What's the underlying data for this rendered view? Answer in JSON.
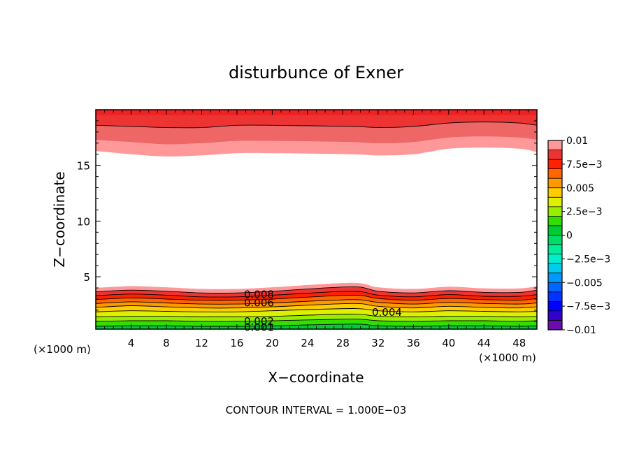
{
  "chart_data": {
    "type": "contour",
    "title": "disturbunce of Exner",
    "xlabel": "X−coordinate",
    "ylabel": "Z−coordinate",
    "x_unit_left": "(×1000 m)",
    "x_unit_right": "(×1000 m)",
    "xlim": [
      0,
      50
    ],
    "ylim": [
      0.3,
      20
    ],
    "x_ticks": [
      4,
      8,
      12,
      16,
      20,
      24,
      28,
      32,
      36,
      40,
      44,
      48
    ],
    "y_ticks": [
      5,
      10,
      15
    ],
    "footer": "CONTOUR INTERVAL = 1.000E−03",
    "contour_interval": 0.001,
    "colorbar": {
      "range": [
        -0.01,
        0.01
      ],
      "tick_labels": [
        "0.01",
        "7.5e−3",
        "0.005",
        "2.5e−3",
        "0",
        "−2.5e−3",
        "−0.005",
        "−7.5e−3",
        "−0.01"
      ],
      "tick_values": [
        0.01,
        0.0075,
        0.005,
        0.0025,
        0,
        -0.0025,
        -0.005,
        -0.0075,
        -0.01
      ],
      "levels": [
        {
          "from": -0.01,
          "to": -0.009,
          "color": "#6a0dad"
        },
        {
          "from": -0.009,
          "to": -0.008,
          "color": "#3300cc"
        },
        {
          "from": -0.008,
          "to": -0.007,
          "color": "#0000ff"
        },
        {
          "from": -0.007,
          "to": -0.006,
          "color": "#0033ff"
        },
        {
          "from": -0.006,
          "to": -0.005,
          "color": "#0066ff"
        },
        {
          "from": -0.005,
          "to": -0.004,
          "color": "#0099ff"
        },
        {
          "from": -0.004,
          "to": -0.003,
          "color": "#00ccee"
        },
        {
          "from": -0.003,
          "to": -0.002,
          "color": "#00eecc"
        },
        {
          "from": -0.002,
          "to": -0.001,
          "color": "#00ee99"
        },
        {
          "from": -0.001,
          "to": 0.0,
          "color": "#00dd66"
        },
        {
          "from": 0.0,
          "to": 0.001,
          "color": "#00cc33"
        },
        {
          "from": 0.001,
          "to": 0.002,
          "color": "#33dd00"
        },
        {
          "from": 0.002,
          "to": 0.003,
          "color": "#99ee00"
        },
        {
          "from": 0.003,
          "to": 0.004,
          "color": "#ddf000"
        },
        {
          "from": 0.004,
          "to": 0.005,
          "color": "#ffcc00"
        },
        {
          "from": 0.005,
          "to": 0.006,
          "color": "#ff9900"
        },
        {
          "from": 0.006,
          "to": 0.007,
          "color": "#ff6600"
        },
        {
          "from": 0.007,
          "to": 0.008,
          "color": "#ff2200"
        },
        {
          "from": 0.008,
          "to": 0.009,
          "color": "#ee3333"
        },
        {
          "from": 0.009,
          "to": 0.01,
          "color": "#ff9999"
        }
      ]
    },
    "lower_band": {
      "description": "Exner disturbance decreasing upward near surface",
      "contours": [
        {
          "level": 0.001,
          "z": [
            0.55,
            0.6,
            0.6,
            0.55,
            0.55,
            0.6,
            0.75,
            0.6,
            0.55,
            0.6,
            0.6,
            0.55,
            0.6
          ]
        },
        {
          "level": 0.002,
          "z": [
            1.0,
            1.05,
            1.05,
            1.0,
            1.0,
            1.05,
            1.2,
            1.05,
            1.0,
            1.05,
            1.05,
            1.0,
            1.05
          ]
        },
        {
          "level": 0.003,
          "z": [
            1.4,
            1.45,
            1.45,
            1.4,
            1.4,
            1.45,
            1.65,
            1.45,
            1.4,
            1.45,
            1.45,
            1.4,
            1.45
          ]
        },
        {
          "level": 0.004,
          "z": [
            1.85,
            1.95,
            1.9,
            1.85,
            1.85,
            1.95,
            2.15,
            1.95,
            1.85,
            1.95,
            1.9,
            1.85,
            1.9
          ]
        },
        {
          "level": 0.005,
          "z": [
            2.25,
            2.4,
            2.3,
            2.2,
            2.2,
            2.3,
            2.6,
            2.35,
            2.2,
            2.35,
            2.25,
            2.2,
            2.3
          ]
        },
        {
          "level": 0.006,
          "z": [
            2.6,
            2.75,
            2.65,
            2.55,
            2.55,
            2.65,
            2.95,
            2.7,
            2.55,
            2.7,
            2.6,
            2.55,
            2.65
          ]
        },
        {
          "level": 0.007,
          "z": [
            2.95,
            3.1,
            3.0,
            2.9,
            2.9,
            3.0,
            3.35,
            3.05,
            2.9,
            3.05,
            2.95,
            2.9,
            3.05
          ]
        },
        {
          "level": 0.008,
          "z": [
            3.3,
            3.45,
            3.35,
            3.2,
            3.2,
            3.35,
            3.7,
            3.35,
            3.2,
            3.4,
            3.25,
            3.25,
            3.4
          ]
        },
        {
          "level": 0.009,
          "z": [
            3.65,
            3.8,
            3.7,
            3.55,
            3.55,
            3.7,
            4.1,
            3.7,
            3.55,
            3.75,
            3.6,
            3.6,
            3.8
          ]
        },
        {
          "level": 0.01,
          "z": [
            4.0,
            4.15,
            4.05,
            3.9,
            3.9,
            4.05,
            4.45,
            4.05,
            3.9,
            4.1,
            3.95,
            3.95,
            4.15
          ]
        }
      ]
    },
    "upper_band": {
      "description": "Exner disturbance increasing upward near model top",
      "contours": [
        {
          "level": 0.009,
          "z": [
            16.3,
            16.0,
            15.8,
            15.9,
            16.1,
            16.1,
            16.0,
            15.9,
            16.0,
            16.5,
            16.6,
            16.5,
            16.2
          ]
        },
        {
          "level": 0.01,
          "z": [
            17.3,
            17.1,
            16.9,
            17.0,
            17.2,
            17.2,
            17.1,
            17.0,
            17.1,
            17.5,
            17.6,
            17.5,
            17.3
          ]
        },
        {
          "level": 0.011,
          "z": [
            18.6,
            18.5,
            18.4,
            18.4,
            18.6,
            18.6,
            18.5,
            18.4,
            18.5,
            18.8,
            18.9,
            18.8,
            18.6
          ]
        }
      ]
    },
    "contour_x": [
      0,
      4,
      8,
      12,
      16,
      20,
      29,
      32,
      36,
      40,
      44,
      48,
      50
    ],
    "contour_labels": [
      {
        "text": "0.008",
        "x": 18.5,
        "z": 3.4
      },
      {
        "text": "0.006",
        "x": 18.5,
        "z": 2.65
      },
      {
        "text": "0.004",
        "x": 33.0,
        "z": 1.8
      },
      {
        "text": "0.002",
        "x": 18.5,
        "z": 1.0
      },
      {
        "text": "0.001",
        "x": 18.5,
        "z": 0.45
      }
    ]
  }
}
